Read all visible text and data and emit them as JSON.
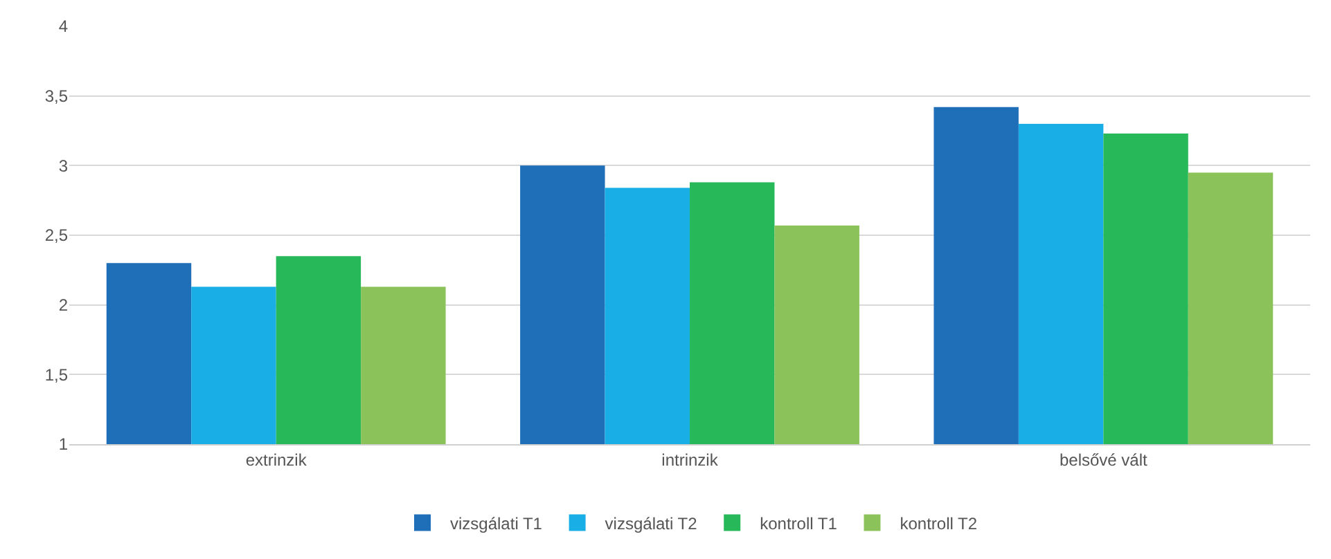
{
  "chart_data": {
    "type": "bar",
    "categories": [
      "extrinzik",
      "intrinzik",
      "belsővé vált"
    ],
    "series": [
      {
        "name": "vizsgálati T1",
        "color": "#1f6fb8",
        "values": [
          2.3,
          3.0,
          3.42
        ]
      },
      {
        "name": "vizsgálati T2",
        "color": "#1aaee6",
        "values": [
          2.13,
          2.84,
          3.3
        ]
      },
      {
        "name": "kontroll T1",
        "color": "#27b85a",
        "values": [
          2.35,
          2.88,
          3.23
        ]
      },
      {
        "name": "kontroll T2",
        "color": "#8bc35a",
        "values": [
          2.13,
          2.57,
          2.95
        ]
      }
    ],
    "ylim": [
      1,
      4
    ],
    "yticks": [
      1,
      {
        "value": 1.5,
        "label": "1,5"
      },
      2,
      {
        "value": 2.5,
        "label": "2,5"
      },
      3,
      {
        "value": 3.5,
        "label": "3,5"
      },
      4
    ],
    "grid": "y",
    "legend": "bottom"
  }
}
